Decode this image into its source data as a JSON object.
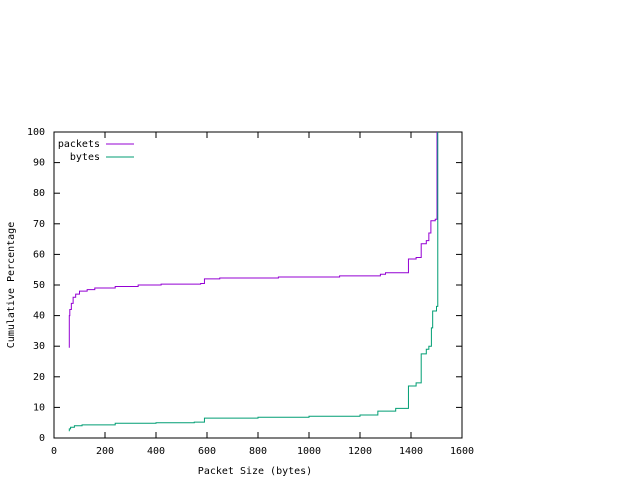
{
  "chart_data": {
    "type": "line",
    "xlabel": "Packet Size (bytes)",
    "ylabel": "Cumulative Percentage",
    "xlim": [
      0,
      1600
    ],
    "xticks": [
      0,
      200,
      400,
      600,
      800,
      1000,
      1200,
      1400,
      1600
    ],
    "ylim": [
      0,
      100
    ],
    "yticks": [
      0,
      10,
      20,
      30,
      40,
      50,
      60,
      70,
      80,
      90,
      100
    ],
    "legend": "top-left",
    "series": [
      {
        "name": "packets",
        "color": "#9400d3",
        "x": [
          60,
          60,
          62,
          62,
          68,
          68,
          75,
          75,
          85,
          85,
          100,
          100,
          130,
          130,
          160,
          160,
          240,
          240,
          330,
          330,
          420,
          420,
          575,
          575,
          590,
          590,
          650,
          650,
          880,
          880,
          1120,
          1120,
          1280,
          1280,
          1300,
          1300,
          1390,
          1390,
          1420,
          1420,
          1440,
          1440,
          1460,
          1460,
          1470,
          1470,
          1478,
          1478,
          1495,
          1495,
          1502,
          1502
        ],
        "values": [
          29.5,
          40,
          40,
          42,
          42,
          44,
          44,
          46,
          46,
          47,
          47,
          48,
          48,
          48.5,
          48.5,
          49,
          49,
          49.5,
          49.5,
          50,
          50,
          50.3,
          50.3,
          50.5,
          50.5,
          52,
          52,
          52.3,
          52.3,
          52.6,
          52.6,
          53,
          53,
          53.5,
          53.5,
          54,
          54,
          58.5,
          58.5,
          59,
          59,
          63.5,
          63.5,
          64.5,
          64.5,
          67,
          67,
          71,
          71,
          71.5,
          71.5,
          100
        ]
      },
      {
        "name": "bytes",
        "color": "#009e73",
        "x": [
          60,
          60,
          65,
          65,
          80,
          80,
          110,
          110,
          240,
          240,
          400,
          400,
          550,
          550,
          590,
          590,
          800,
          800,
          1000,
          1000,
          1200,
          1200,
          1270,
          1270,
          1340,
          1340,
          1390,
          1390,
          1420,
          1420,
          1440,
          1440,
          1460,
          1460,
          1470,
          1470,
          1480,
          1480,
          1485,
          1485,
          1500,
          1500,
          1505,
          1505
        ],
        "values": [
          2.2,
          3,
          3,
          3.5,
          3.5,
          4,
          4,
          4.3,
          4.3,
          4.8,
          4.8,
          5,
          5,
          5.2,
          5.2,
          6.5,
          6.5,
          6.8,
          6.8,
          7.1,
          7.1,
          7.5,
          7.5,
          8.8,
          8.8,
          9.7,
          9.7,
          17,
          17,
          18,
          18,
          27.5,
          27.5,
          29,
          29,
          30,
          30,
          36,
          36,
          41.5,
          41.5,
          43,
          43,
          100
        ]
      }
    ]
  }
}
